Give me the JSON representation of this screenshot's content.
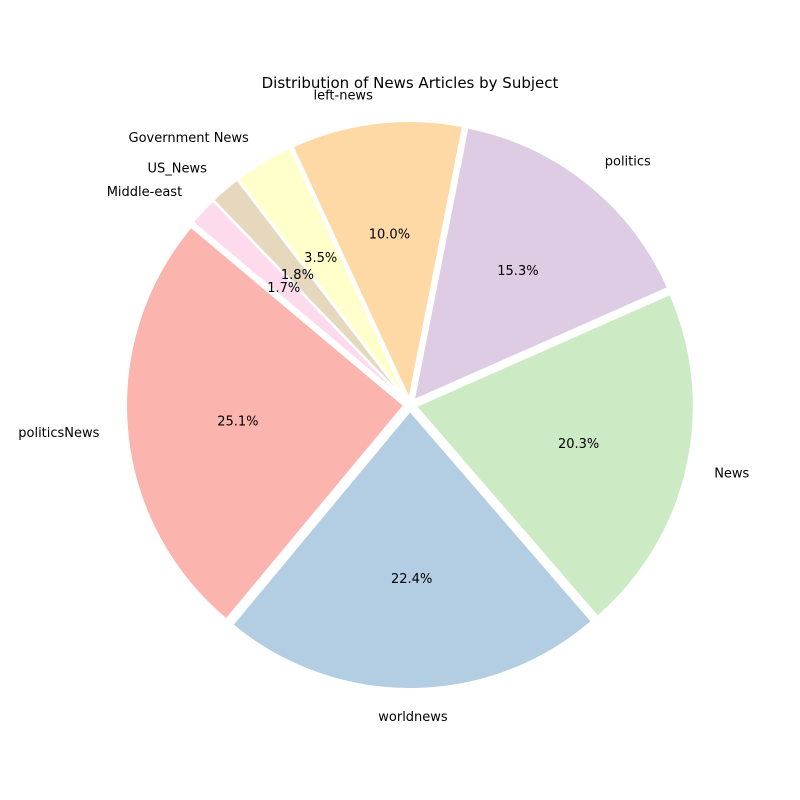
{
  "chart_data": {
    "type": "pie",
    "title": "Distribution of News Articles by Subject",
    "categories": [
      "politicsNews",
      "worldnews",
      "News",
      "politics",
      "left-news",
      "Government News",
      "US_News",
      "Middle-east"
    ],
    "values": [
      25.1,
      22.4,
      20.3,
      15.3,
      10.0,
      3.5,
      1.8,
      1.7
    ],
    "value_labels": [
      "25.1%",
      "22.4%",
      "20.3%",
      "15.3%",
      "10.0%",
      "3.5%",
      "1.8%",
      "1.7%"
    ],
    "colors": [
      "#fbb4ae",
      "#b3cde3",
      "#ccebc5",
      "#decbe4",
      "#fed9a6",
      "#ffffcc",
      "#e5d8bd",
      "#fddaec"
    ],
    "start_angle_deg": 140,
    "direction": "counterclockwise",
    "exploded": true
  }
}
